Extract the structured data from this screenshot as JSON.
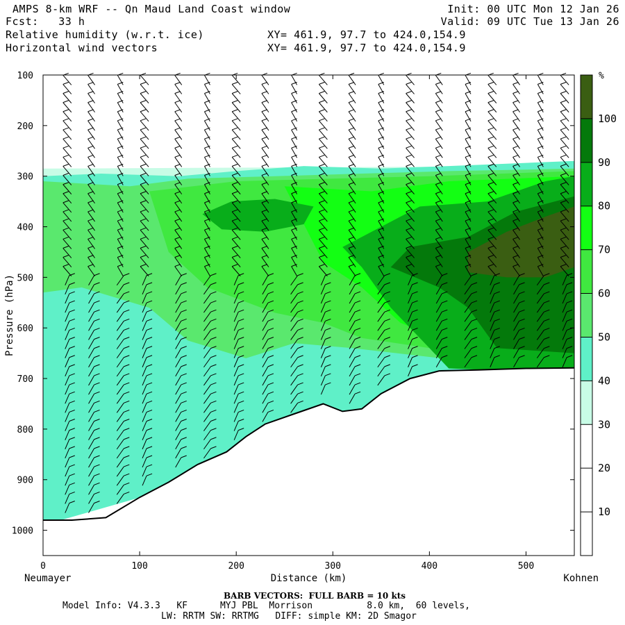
{
  "header": {
    "title": "AMPS 8-km WRF -- Qn Maud Land Coast window",
    "fcst": "Fcst:   33 h",
    "field1": "Relative humidity (w.r.t. ice)",
    "field2": "Horizontal wind vectors",
    "xy1": "XY= 461.9, 97.7 to 424.0,154.9",
    "xy2": "XY= 461.9, 97.7 to 424.0,154.9",
    "init": "Init: 00 UTC Mon 12 Jan 26",
    "valid": "Valid: 09 UTC Tue 13 Jan 26"
  },
  "footer": {
    "barb_note": "BARB VECTORS:  FULL BARB = 10 kts",
    "model_info": "Model Info: V4.3.3   KF      MYJ PBL  Morrison          8.0 km,  60 levels,",
    "physics": "LW: RRTM SW: RRTMG   DIFF: simple KM: 2D Smagor"
  },
  "colors": {
    "rh_30_40": "#c8fce6",
    "rh_40_50": "#5ff0c8",
    "rh_50_60": "#5ae86e",
    "rh_60_70": "#40e840",
    "rh_70_80": "#13ff13",
    "rh_80_90": "#08ad1a",
    "rh_90_100": "#04790b",
    "rh_100": "#3a5e12",
    "terrain": "#ffffff",
    "barb": "#000000"
  },
  "chart_data": {
    "type": "heatmap",
    "title": "Relative humidity (w.r.t. ice) cross-section with horizontal wind vectors",
    "xlabel": "Distance (km)",
    "ylabel": "Pressure (hPa)",
    "xlim": [
      0,
      550
    ],
    "ylim": [
      1050,
      100
    ],
    "xticks": [
      0,
      100,
      200,
      300,
      400,
      500
    ],
    "yticks": [
      100,
      200,
      300,
      400,
      500,
      600,
      700,
      800,
      900,
      1000
    ],
    "x_start_label": "Neumayer",
    "x_end_label": "Kohnen",
    "colorbar": {
      "unit": "%",
      "ticks": [
        10,
        20,
        30,
        40,
        50,
        60,
        70,
        80,
        90,
        100
      ],
      "bins": [
        {
          "from": 0,
          "to": 30,
          "color": "#ffffff"
        },
        {
          "from": 30,
          "to": 40,
          "color": "#c8fce6"
        },
        {
          "from": 40,
          "to": 50,
          "color": "#5ff0c8"
        },
        {
          "from": 50,
          "to": 60,
          "color": "#5ae86e"
        },
        {
          "from": 60,
          "to": 70,
          "color": "#40e840"
        },
        {
          "from": 70,
          "to": 80,
          "color": "#13ff13"
        },
        {
          "from": 80,
          "to": 90,
          "color": "#08ad1a"
        },
        {
          "from": 90,
          "to": 100,
          "color": "#04790b"
        },
        {
          "from": 100,
          "to": 110,
          "color": "#3a5e12"
        }
      ]
    },
    "terrain_surface": {
      "x": [
        0,
        30,
        65,
        100,
        130,
        160,
        190,
        210,
        230,
        260,
        290,
        310,
        330,
        350,
        380,
        410,
        450,
        500,
        550
      ],
      "p": [
        980,
        980,
        975,
        935,
        905,
        870,
        845,
        815,
        790,
        770,
        750,
        765,
        760,
        730,
        700,
        685,
        683,
        680,
        679
      ]
    },
    "moist_layer_top_hPa": 280,
    "barb_columns_km": [
      25,
      50,
      80,
      105,
      140,
      170,
      200,
      230,
      260,
      290,
      320,
      350,
      380,
      410,
      440,
      465,
      490,
      515,
      540
    ]
  }
}
